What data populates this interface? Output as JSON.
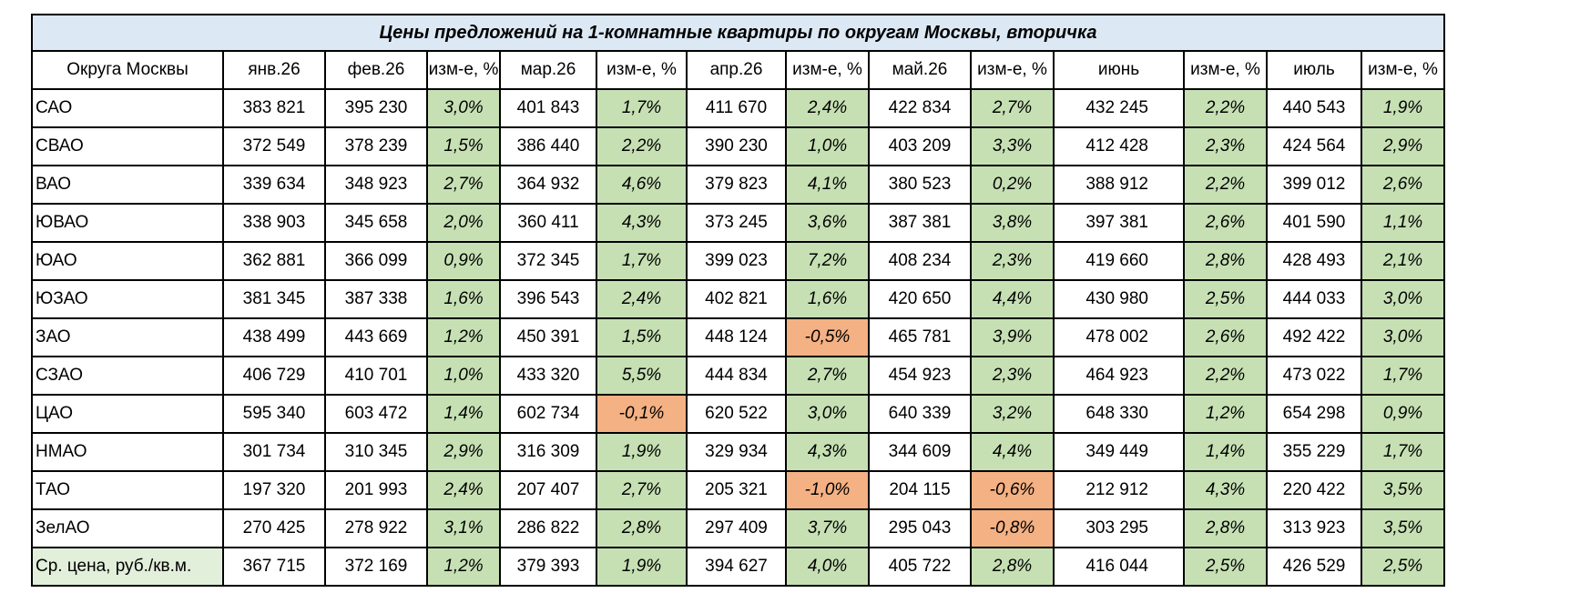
{
  "title": "Цены предложений на 1-комнатные квартиры по округам Москвы, вторичка",
  "colors": {
    "title_bg": "#dce9f5",
    "positive_change": "#c6e0b4",
    "negative_change": "#f4b183",
    "avg_label_bg": "#e2efda"
  },
  "headers": [
    "Округа Москвы",
    "янв.26",
    "фев.26",
    "изм-е, %",
    "мар.26",
    "изм-е, %",
    "апр.26",
    "изм-е, %",
    "май.26",
    "изм-е, %",
    "июнь",
    "изм-е, %",
    "июль",
    "изм-е, %"
  ],
  "rows": [
    {
      "name": "САО",
      "values": [
        "383 821",
        "395 230",
        "3,0%",
        "401 843",
        "1,7%",
        "411 670",
        "2,4%",
        "422 834",
        "2,7%",
        "432 245",
        "2,2%",
        "440 543",
        "1,9%"
      ]
    },
    {
      "name": "СВАО",
      "values": [
        "372 549",
        "378 239",
        "1,5%",
        "386 440",
        "2,2%",
        "390 230",
        "1,0%",
        "403 209",
        "3,3%",
        "412 428",
        "2,3%",
        "424 564",
        "2,9%"
      ]
    },
    {
      "name": "ВАО",
      "values": [
        "339 634",
        "348 923",
        "2,7%",
        "364 932",
        "4,6%",
        "379 823",
        "4,1%",
        "380 523",
        "0,2%",
        "388 912",
        "2,2%",
        "399 012",
        "2,6%"
      ]
    },
    {
      "name": "ЮВАО",
      "values": [
        "338 903",
        "345 658",
        "2,0%",
        "360 411",
        "4,3%",
        "373 245",
        "3,6%",
        "387 381",
        "3,8%",
        "397 381",
        "2,6%",
        "401 590",
        "1,1%"
      ]
    },
    {
      "name": "ЮАО",
      "values": [
        "362 881",
        "366 099",
        "0,9%",
        "372 345",
        "1,7%",
        "399 023",
        "7,2%",
        "408 234",
        "2,3%",
        "419 660",
        "2,8%",
        "428 493",
        "2,1%"
      ]
    },
    {
      "name": "ЮЗАО",
      "values": [
        "381 345",
        "387 338",
        "1,6%",
        "396 543",
        "2,4%",
        "402 821",
        "1,6%",
        "420 650",
        "4,4%",
        "430 980",
        "2,5%",
        "444 033",
        "3,0%"
      ]
    },
    {
      "name": "ЗАО",
      "values": [
        "438 499",
        "443 669",
        "1,2%",
        "450 391",
        "1,5%",
        "448 124",
        "-0,5%",
        "465 781",
        "3,9%",
        "478 002",
        "2,6%",
        "492 422",
        "3,0%"
      ]
    },
    {
      "name": "СЗАО",
      "values": [
        "406 729",
        "410 701",
        "1,0%",
        "433 320",
        "5,5%",
        "444 834",
        "2,7%",
        "454 923",
        "2,3%",
        "464 923",
        "2,2%",
        "473 022",
        "1,7%"
      ]
    },
    {
      "name": "ЦАО",
      "values": [
        "595 340",
        "603 472",
        "1,4%",
        "602 734",
        "-0,1%",
        "620 522",
        "3,0%",
        "640 339",
        "3,2%",
        "648 330",
        "1,2%",
        "654 298",
        "0,9%"
      ]
    },
    {
      "name": "НМАО",
      "values": [
        "301 734",
        "310 345",
        "2,9%",
        "316 309",
        "1,9%",
        "329 934",
        "4,3%",
        "344 609",
        "4,4%",
        "349 449",
        "1,4%",
        "355 229",
        "1,7%"
      ]
    },
    {
      "name": "ТАО",
      "values": [
        "197 320",
        "201 993",
        "2,4%",
        "207 407",
        "2,7%",
        "205 321",
        "-1,0%",
        "204 115",
        "-0,6%",
        "212 912",
        "4,3%",
        "220 422",
        "3,5%"
      ]
    },
    {
      "name": "ЗелАО",
      "values": [
        "270 425",
        "278 922",
        "3,1%",
        "286 822",
        "2,8%",
        "297 409",
        "3,7%",
        "295 043",
        "-0,8%",
        "303 295",
        "2,8%",
        "313 923",
        "3,5%"
      ]
    }
  ],
  "average": {
    "name": "Ср. цена, руб./кв.м.",
    "values": [
      "367 715",
      "372 169",
      "1,2%",
      "379 393",
      "1,9%",
      "394 627",
      "4,0%",
      "405 722",
      "2,8%",
      "416 044",
      "2,5%",
      "426 529",
      "2,5%"
    ]
  }
}
